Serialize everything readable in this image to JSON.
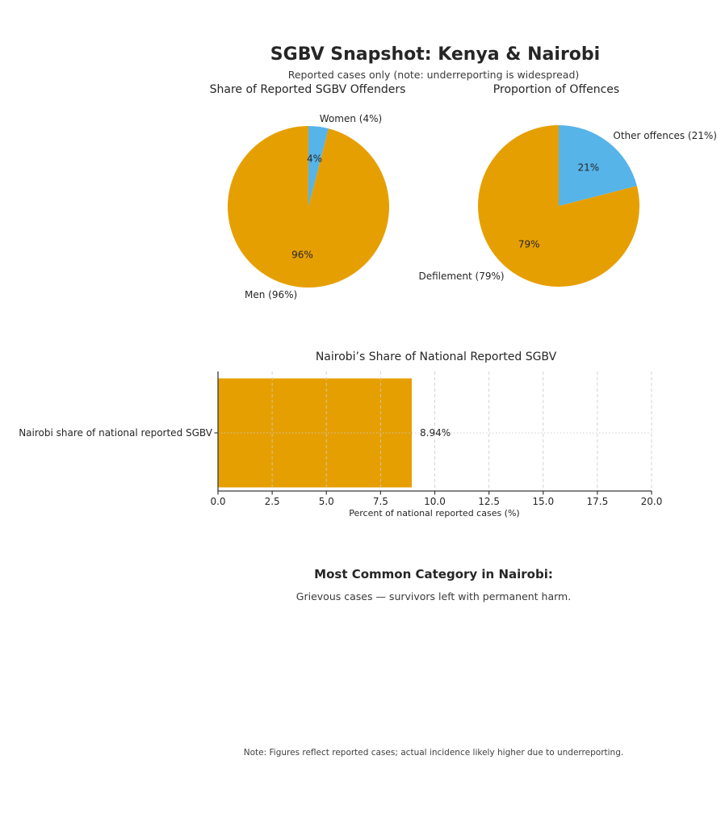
{
  "page": {
    "title": "SGBV Snapshot: Kenya & Nairobi",
    "subtitle": "Reported cases only (note: underreporting is widespread)",
    "footnote": "Note: Figures reflect reported cases; actual incidence likely higher due to underreporting."
  },
  "colors": {
    "orange": "#E69F00",
    "blue": "#56B4E9",
    "text_dark": "#262626",
    "text_gray": "#3a3a3a",
    "grid": "#cccccc",
    "spine": "#3a3a3a"
  },
  "highlight": {
    "heading": "Most Common Category in Nairobi:",
    "body": "Grievous cases — survivors left with permanent harm."
  },
  "chart_data": [
    {
      "type": "pie",
      "title": "Share of Reported SGBV Offenders",
      "start_angle": 90,
      "direction": "counterclockwise",
      "slices": [
        {
          "label": "Men (96%)",
          "value": 96,
          "pct_label": "96%",
          "color": "#E69F00"
        },
        {
          "label": "Women (4%)",
          "value": 4,
          "pct_label": "4%",
          "color": "#56B4E9"
        }
      ]
    },
    {
      "type": "pie",
      "title": "Proportion of Offences",
      "start_angle": 90,
      "direction": "counterclockwise",
      "slices": [
        {
          "label": "Defilement (79%)",
          "value": 79,
          "pct_label": "79%",
          "color": "#E69F00"
        },
        {
          "label": "Other offences (21%)",
          "value": 21,
          "pct_label": "21%",
          "color": "#56B4E9"
        }
      ]
    },
    {
      "type": "bar",
      "orientation": "horizontal",
      "title": "Nairobi’s Share of National Reported SGBV",
      "categories": [
        "Nairobi share of national reported SGBV"
      ],
      "values": [
        8.94
      ],
      "bar_label": "8.94%",
      "xlabel": "Percent of national reported cases (%)",
      "xlim": [
        0,
        20
      ],
      "xticks": [
        0,
        2.5,
        5,
        7.5,
        10,
        12.5,
        15,
        17.5,
        20
      ],
      "xtick_labels": [
        "0.0",
        "2.5",
        "5.0",
        "7.5",
        "10.0",
        "12.5",
        "15.0",
        "17.5",
        "20.0"
      ],
      "bar_color": "#E69F00",
      "grid": true,
      "legend": "none"
    }
  ]
}
